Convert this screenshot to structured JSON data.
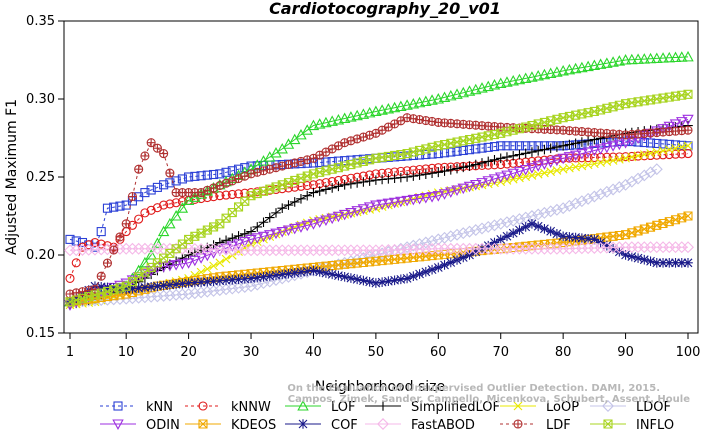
{
  "chart_data": {
    "type": "line",
    "title": "Cardiotocography_20_v01",
    "xlabel": "Neighborhood size",
    "ylabel": "Adjusted Maximum F1",
    "xlim": [
      1,
      100
    ],
    "ylim": [
      0.15,
      0.35
    ],
    "xticks": [
      1,
      10,
      20,
      30,
      40,
      50,
      60,
      70,
      80,
      90,
      100
    ],
    "yticks": [
      0.15,
      0.2,
      0.25,
      0.3,
      0.35
    ],
    "grid": false,
    "legend_position": "bottom",
    "credit": [
      "Campos, Zimek, Sander, Campello, Micenkova, Schubert, Assent, Houle",
      "On the Evaluation of Unsupervised Outlier Detection. DAMI, 2015."
    ],
    "series": [
      {
        "name": "kNN",
        "color": "#2a3fd6",
        "marker": "square",
        "dash": "3,3",
        "points": [
          [
            1,
            0.21
          ],
          [
            3,
            0.208
          ],
          [
            5,
            0.205
          ],
          [
            6,
            0.215
          ],
          [
            7,
            0.23
          ],
          [
            10,
            0.232
          ],
          [
            13,
            0.24
          ],
          [
            16,
            0.245
          ],
          [
            20,
            0.25
          ],
          [
            25,
            0.252
          ],
          [
            30,
            0.257
          ],
          [
            40,
            0.259
          ],
          [
            50,
            0.262
          ],
          [
            60,
            0.265
          ],
          [
            70,
            0.27
          ],
          [
            80,
            0.27
          ],
          [
            90,
            0.273
          ],
          [
            100,
            0.27
          ]
        ]
      },
      {
        "name": "kNNW",
        "color": "#e01b1b",
        "marker": "circle",
        "dash": "3,3",
        "points": [
          [
            1,
            0.185
          ],
          [
            3,
            0.205
          ],
          [
            5,
            0.208
          ],
          [
            8,
            0.205
          ],
          [
            10,
            0.215
          ],
          [
            13,
            0.227
          ],
          [
            16,
            0.232
          ],
          [
            20,
            0.235
          ],
          [
            25,
            0.238
          ],
          [
            30,
            0.24
          ],
          [
            40,
            0.245
          ],
          [
            50,
            0.252
          ],
          [
            60,
            0.256
          ],
          [
            70,
            0.258
          ],
          [
            80,
            0.262
          ],
          [
            90,
            0.263
          ],
          [
            100,
            0.265
          ]
        ]
      },
      {
        "name": "LOF",
        "color": "#2bd62b",
        "marker": "triangle",
        "points": [
          [
            1,
            0.17
          ],
          [
            5,
            0.173
          ],
          [
            10,
            0.18
          ],
          [
            14,
            0.2
          ],
          [
            16,
            0.215
          ],
          [
            20,
            0.235
          ],
          [
            25,
            0.245
          ],
          [
            30,
            0.255
          ],
          [
            35,
            0.268
          ],
          [
            40,
            0.283
          ],
          [
            50,
            0.292
          ],
          [
            60,
            0.3
          ],
          [
            70,
            0.31
          ],
          [
            80,
            0.318
          ],
          [
            90,
            0.325
          ],
          [
            100,
            0.327
          ]
        ]
      },
      {
        "name": "SimplifiedLOF",
        "color": "#000000",
        "marker": "plus",
        "points": [
          [
            1,
            0.168
          ],
          [
            5,
            0.172
          ],
          [
            10,
            0.178
          ],
          [
            15,
            0.19
          ],
          [
            20,
            0.2
          ],
          [
            25,
            0.208
          ],
          [
            30,
            0.215
          ],
          [
            35,
            0.23
          ],
          [
            40,
            0.24
          ],
          [
            45,
            0.245
          ],
          [
            50,
            0.248
          ],
          [
            55,
            0.25
          ],
          [
            60,
            0.253
          ],
          [
            65,
            0.257
          ],
          [
            70,
            0.262
          ],
          [
            80,
            0.27
          ],
          [
            90,
            0.278
          ],
          [
            100,
            0.283
          ]
        ]
      },
      {
        "name": "LoOP",
        "color": "#e8e800",
        "marker": "x",
        "points": [
          [
            1,
            0.168
          ],
          [
            5,
            0.17
          ],
          [
            10,
            0.175
          ],
          [
            15,
            0.18
          ],
          [
            20,
            0.185
          ],
          [
            25,
            0.195
          ],
          [
            30,
            0.207
          ],
          [
            35,
            0.215
          ],
          [
            40,
            0.222
          ],
          [
            50,
            0.23
          ],
          [
            60,
            0.24
          ],
          [
            70,
            0.247
          ],
          [
            80,
            0.255
          ],
          [
            90,
            0.262
          ],
          [
            100,
            0.27
          ]
        ]
      },
      {
        "name": "LDOF",
        "color": "#c4c4e8",
        "marker": "diamond",
        "points": [
          [
            1,
            0.17
          ],
          [
            10,
            0.172
          ],
          [
            20,
            0.175
          ],
          [
            30,
            0.18
          ],
          [
            40,
            0.19
          ],
          [
            50,
            0.2
          ],
          [
            60,
            0.21
          ],
          [
            70,
            0.22
          ],
          [
            80,
            0.23
          ],
          [
            90,
            0.245
          ],
          [
            95,
            0.255
          ]
        ]
      },
      {
        "name": "ODIN",
        "color": "#9d2fe0",
        "marker": "triangle-down",
        "points": [
          [
            1,
            0.168
          ],
          [
            5,
            0.175
          ],
          [
            10,
            0.182
          ],
          [
            15,
            0.192
          ],
          [
            20,
            0.195
          ],
          [
            25,
            0.203
          ],
          [
            30,
            0.21
          ],
          [
            40,
            0.22
          ],
          [
            50,
            0.232
          ],
          [
            60,
            0.238
          ],
          [
            70,
            0.25
          ],
          [
            80,
            0.262
          ],
          [
            90,
            0.272
          ],
          [
            100,
            0.287
          ]
        ]
      },
      {
        "name": "KDEOS",
        "color": "#f0a800",
        "marker": "square-x",
        "points": [
          [
            1,
            0.17
          ],
          [
            10,
            0.175
          ],
          [
            15,
            0.18
          ],
          [
            20,
            0.183
          ],
          [
            25,
            0.186
          ],
          [
            30,
            0.188
          ],
          [
            40,
            0.192
          ],
          [
            50,
            0.196
          ],
          [
            60,
            0.2
          ],
          [
            70,
            0.204
          ],
          [
            80,
            0.208
          ],
          [
            90,
            0.213
          ],
          [
            100,
            0.225
          ]
        ]
      },
      {
        "name": "COF",
        "color": "#1a1a8a",
        "marker": "asterisk",
        "points": [
          [
            1,
            0.17
          ],
          [
            5,
            0.18
          ],
          [
            10,
            0.178
          ],
          [
            20,
            0.182
          ],
          [
            30,
            0.185
          ],
          [
            40,
            0.19
          ],
          [
            50,
            0.182
          ],
          [
            55,
            0.185
          ],
          [
            60,
            0.192
          ],
          [
            65,
            0.2
          ],
          [
            70,
            0.21
          ],
          [
            75,
            0.22
          ],
          [
            80,
            0.212
          ],
          [
            85,
            0.21
          ],
          [
            90,
            0.2
          ],
          [
            95,
            0.195
          ],
          [
            100,
            0.195
          ]
        ]
      },
      {
        "name": "FastABOD",
        "color": "#f5b8e8",
        "marker": "diamond",
        "points": [
          [
            1,
            0.203
          ],
          [
            10,
            0.204
          ],
          [
            20,
            0.204
          ],
          [
            30,
            0.203
          ],
          [
            40,
            0.203
          ],
          [
            50,
            0.203
          ],
          [
            60,
            0.204
          ],
          [
            70,
            0.204
          ],
          [
            80,
            0.204
          ],
          [
            90,
            0.205
          ],
          [
            100,
            0.205
          ]
        ]
      },
      {
        "name": "LDF",
        "color": "#b03030",
        "marker": "circle-plus",
        "dash": "3,3",
        "points": [
          [
            1,
            0.175
          ],
          [
            5,
            0.178
          ],
          [
            10,
            0.22
          ],
          [
            12,
            0.255
          ],
          [
            14,
            0.272
          ],
          [
            16,
            0.265
          ],
          [
            18,
            0.24
          ],
          [
            22,
            0.24
          ],
          [
            30,
            0.252
          ],
          [
            40,
            0.262
          ],
          [
            45,
            0.272
          ],
          [
            50,
            0.278
          ],
          [
            55,
            0.288
          ],
          [
            60,
            0.285
          ],
          [
            70,
            0.282
          ],
          [
            80,
            0.28
          ],
          [
            90,
            0.277
          ],
          [
            100,
            0.28
          ]
        ]
      },
      {
        "name": "INFLO",
        "color": "#a8d420",
        "marker": "hourglass",
        "points": [
          [
            1,
            0.17
          ],
          [
            10,
            0.18
          ],
          [
            15,
            0.195
          ],
          [
            20,
            0.21
          ],
          [
            25,
            0.22
          ],
          [
            30,
            0.238
          ],
          [
            40,
            0.252
          ],
          [
            50,
            0.262
          ],
          [
            55,
            0.265
          ],
          [
            60,
            0.27
          ],
          [
            70,
            0.278
          ],
          [
            75,
            0.283
          ],
          [
            80,
            0.288
          ],
          [
            85,
            0.292
          ],
          [
            90,
            0.297
          ],
          [
            100,
            0.303
          ]
        ]
      }
    ]
  }
}
